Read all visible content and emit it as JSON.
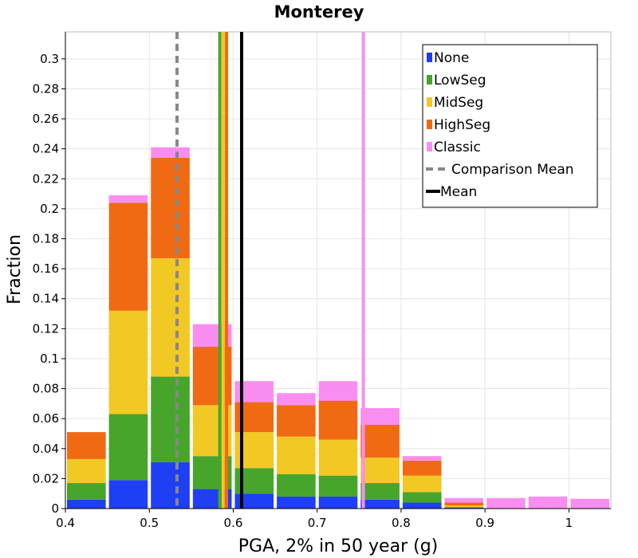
{
  "chart_data": {
    "type": "bar",
    "title": "Monterey",
    "xlabel": "PGA, 2% in 50 year (g)",
    "ylabel": "Fraction",
    "xlim": [
      0.4,
      1.05
    ],
    "ylim": [
      0,
      0.318
    ],
    "xticks": [
      "0.4",
      "0.5",
      "0.6",
      "0.7",
      "0.8",
      "0.9",
      "1"
    ],
    "yticks": [
      "0",
      "0.02",
      "0.04",
      "0.06",
      "0.08",
      "0.1",
      "0.12",
      "0.14",
      "0.16",
      "0.18",
      "0.2",
      "0.22",
      "0.24",
      "0.26",
      "0.28",
      "0.3"
    ],
    "grid": true,
    "stacked": true,
    "legend_position": "top-right",
    "bin_width": 0.05,
    "bin_centers": [
      0.425,
      0.475,
      0.525,
      0.575,
      0.625,
      0.675,
      0.725,
      0.775,
      0.825,
      0.875,
      0.925,
      0.975,
      1.025
    ],
    "series": [
      {
        "name": "None",
        "color": "#1f3ff5",
        "values": [
          0.006,
          0.019,
          0.031,
          0.013,
          0.01,
          0.008,
          0.008,
          0.006,
          0.004,
          0.0005,
          0,
          0,
          0
        ]
      },
      {
        "name": "LowSeg",
        "color": "#47a52b",
        "values": [
          0.011,
          0.044,
          0.057,
          0.022,
          0.017,
          0.015,
          0.014,
          0.011,
          0.007,
          0.0005,
          0,
          0,
          0
        ]
      },
      {
        "name": "MidSeg",
        "color": "#f2c824",
        "values": [
          0.016,
          0.069,
          0.079,
          0.034,
          0.024,
          0.025,
          0.024,
          0.017,
          0.011,
          0.001,
          0,
          0,
          0
        ]
      },
      {
        "name": "HighSeg",
        "color": "#f06a14",
        "values": [
          0.018,
          0.072,
          0.067,
          0.039,
          0.02,
          0.021,
          0.026,
          0.022,
          0.01,
          0.002,
          0,
          0,
          0
        ]
      },
      {
        "name": "Classic",
        "color": "#fa8ef0",
        "values": [
          0,
          0.005,
          0.007,
          0.015,
          0.014,
          0.008,
          0.013,
          0.011,
          0.003,
          0.003,
          0.007,
          0.008,
          0.0065
        ]
      }
    ],
    "vlines": [
      {
        "name": "Comparison Mean",
        "x": 0.533,
        "color": "#888888",
        "dashed": true
      },
      {
        "name": "Mean",
        "x": 0.61,
        "color": "#000000",
        "dashed": false
      },
      {
        "name": "LowSeg mean",
        "x": 0.584,
        "color": "#47a52b",
        "dashed": false
      },
      {
        "name": "MidSeg mean",
        "x": 0.588,
        "color": "#f2c824",
        "dashed": false
      },
      {
        "name": "HighSeg mean",
        "x": 0.592,
        "color": "#f06a14",
        "dashed": false
      },
      {
        "name": "Classic mean",
        "x": 0.755,
        "color": "#fa8ef0",
        "dashed": false
      }
    ],
    "legend": [
      {
        "label": "None",
        "kind": "box",
        "color": "#1f3ff5"
      },
      {
        "label": "LowSeg",
        "kind": "box",
        "color": "#47a52b"
      },
      {
        "label": "MidSeg",
        "kind": "box",
        "color": "#f2c824"
      },
      {
        "label": "HighSeg",
        "kind": "box",
        "color": "#f06a14"
      },
      {
        "label": "Classic",
        "kind": "box",
        "color": "#fa8ef0"
      },
      {
        "label": "Comparison Mean",
        "kind": "dash",
        "color": "#888888"
      },
      {
        "label": "Mean",
        "kind": "line",
        "color": "#000000"
      }
    ]
  }
}
